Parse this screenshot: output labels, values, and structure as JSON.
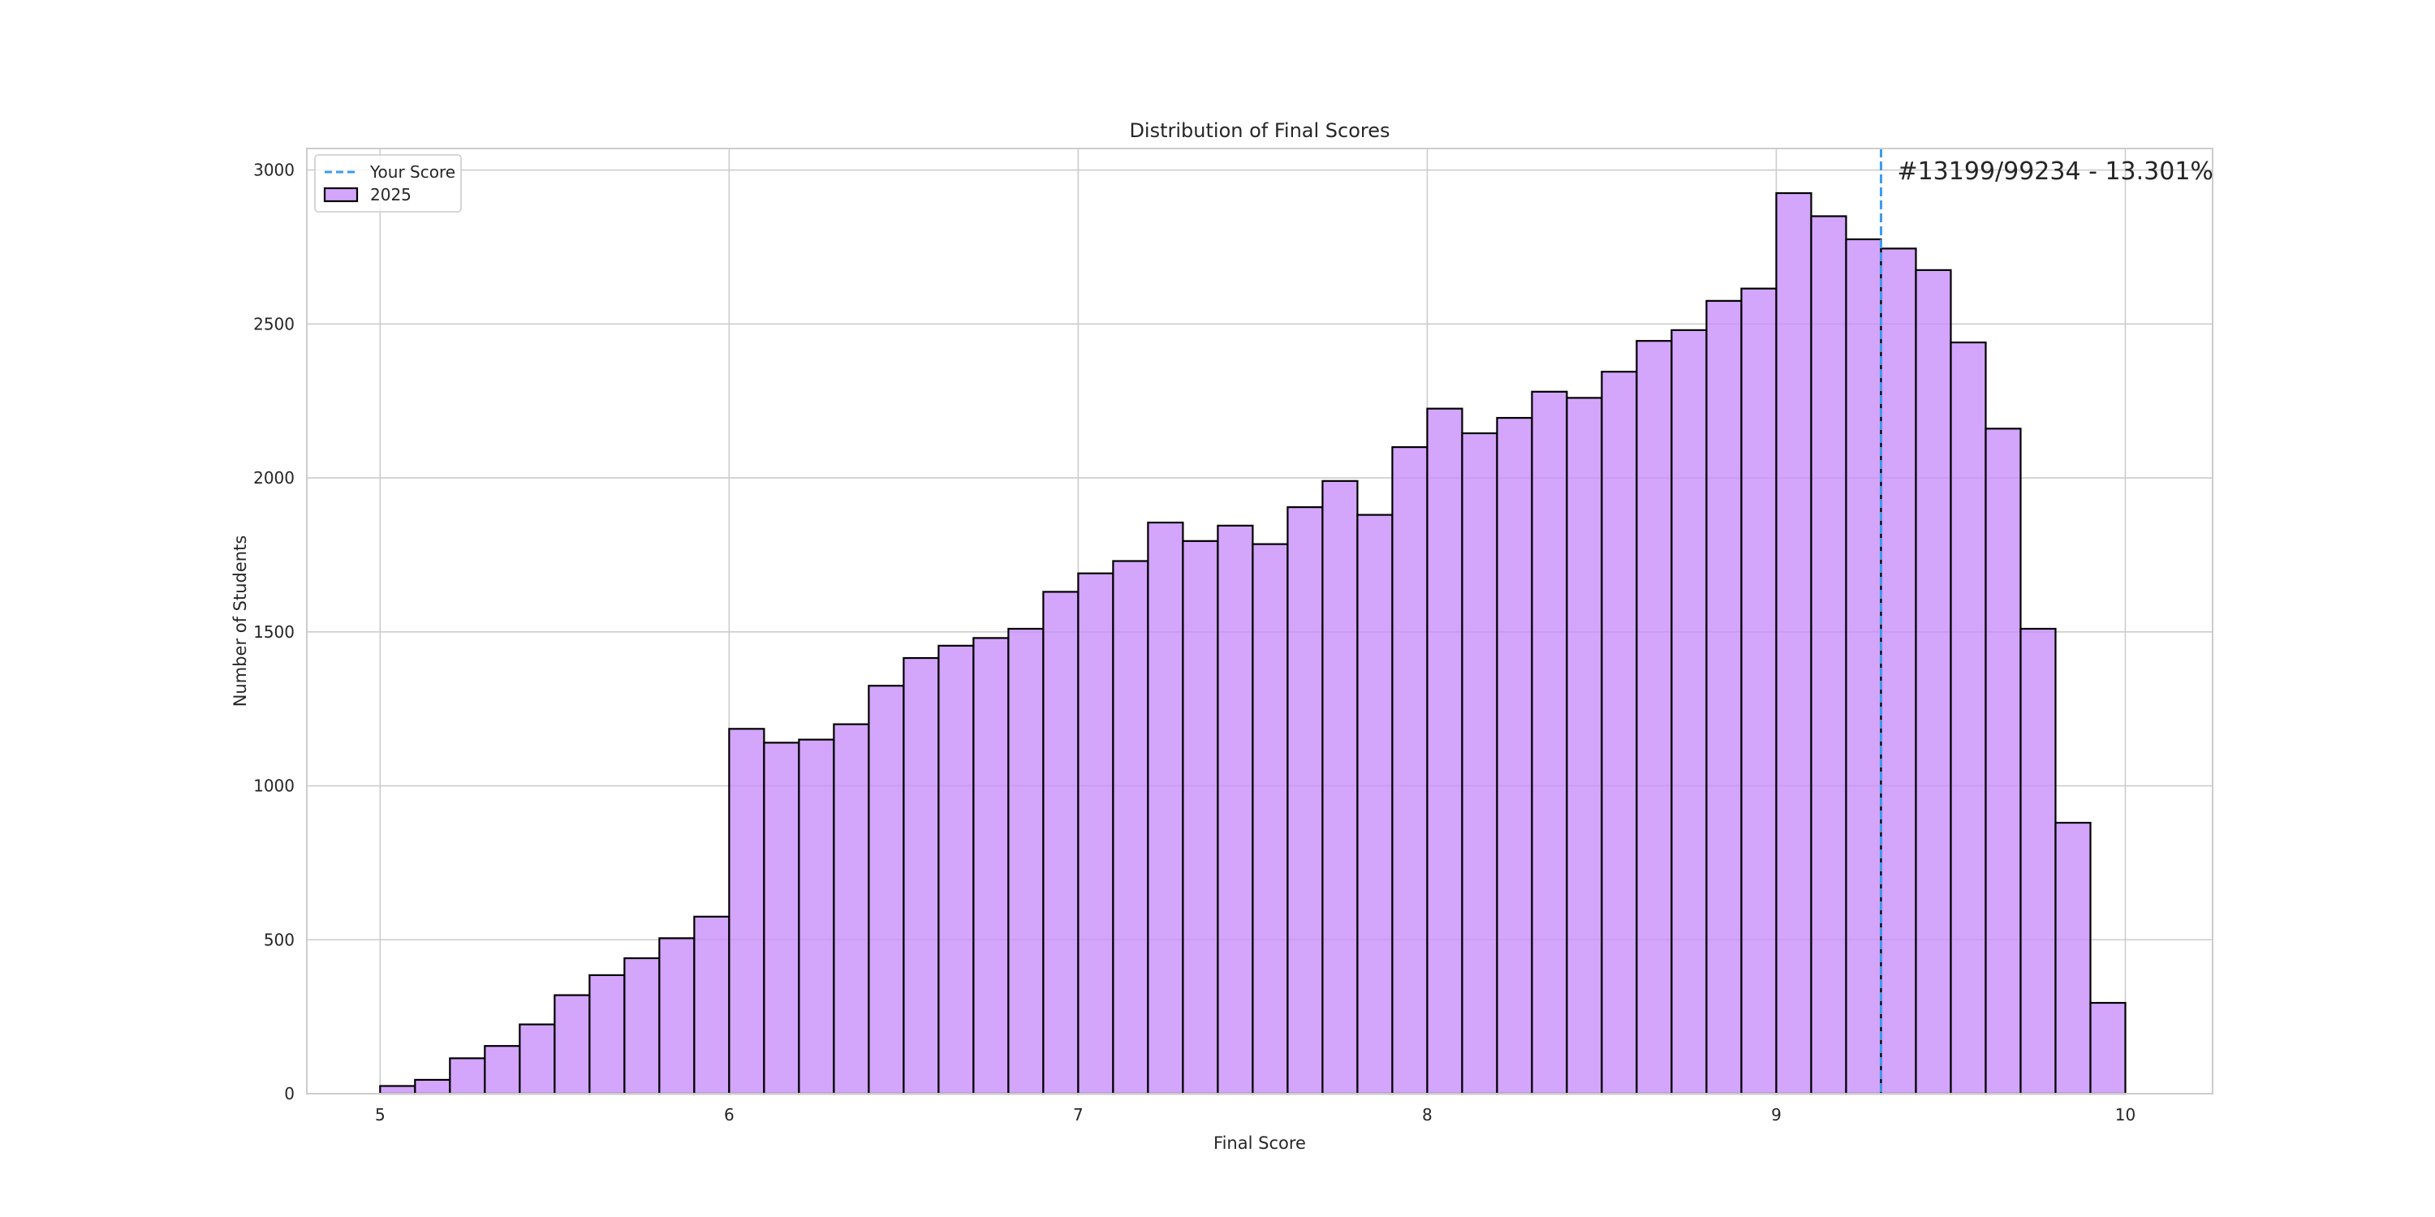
{
  "chart_data": {
    "type": "bar",
    "title": "Distribution of Final Scores",
    "xlabel": "Final Score",
    "ylabel": "Number of Students",
    "xlim": [
      4.79,
      10.25
    ],
    "ylim": [
      0,
      3070
    ],
    "xticks": [
      5,
      6,
      7,
      8,
      9,
      10
    ],
    "yticks": [
      0,
      500,
      1000,
      1500,
      2000,
      2500,
      3000
    ],
    "grid": true,
    "legend": {
      "placement": "top-left",
      "entries": [
        "Your Score",
        "2025"
      ]
    },
    "bin_start": 5.0,
    "bin_width": 0.1,
    "series": [
      {
        "name": "2025",
        "color": "#c78cfa",
        "edgecolor": "#000000",
        "values": [
          25,
          45,
          115,
          155,
          225,
          320,
          385,
          440,
          505,
          575,
          1185,
          1140,
          1150,
          1200,
          1325,
          1415,
          1455,
          1480,
          1510,
          1630,
          1690,
          1730,
          1855,
          1795,
          1845,
          1785,
          1905,
          1990,
          1880,
          2100,
          2225,
          2145,
          2195,
          2280,
          2260,
          2345,
          2445,
          2480,
          2575,
          2615,
          2925,
          2850,
          2775,
          2745,
          2675,
          2440,
          2160,
          1510,
          880,
          295
        ]
      }
    ],
    "marker": {
      "label": "Your Score",
      "x": 9.3,
      "color": "#3b9bf0",
      "style": "dashed",
      "annotation": "#13199/99234 - 13.301%"
    }
  }
}
